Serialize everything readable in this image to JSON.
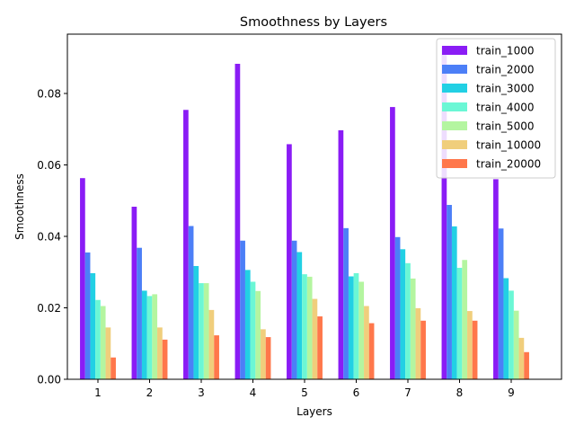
{
  "chart_data": {
    "type": "bar",
    "title": "Smoothness by Layers",
    "xlabel": "Layers",
    "ylabel": "Smoothness",
    "categories": [
      "1",
      "2",
      "3",
      "4",
      "5",
      "6",
      "7",
      "8",
      "9"
    ],
    "ylim": [
      0,
      0.0966
    ],
    "yticks": [
      "0.00",
      "0.02",
      "0.04",
      "0.06",
      "0.08"
    ],
    "ytick_values": [
      0,
      0.02,
      0.04,
      0.06,
      0.08
    ],
    "grid": false,
    "legend_position": "top-right",
    "series": [
      {
        "name": "train_1000",
        "color": "#8a1cf5",
        "values": [
          0.0563,
          0.0483,
          0.0754,
          0.0883,
          0.0658,
          0.0697,
          0.0762,
          0.0932,
          0.056
        ]
      },
      {
        "name": "train_2000",
        "color": "#4c7ff7",
        "values": [
          0.0355,
          0.0368,
          0.0429,
          0.0388,
          0.0388,
          0.0423,
          0.0398,
          0.0488,
          0.0422
        ]
      },
      {
        "name": "train_3000",
        "color": "#22d0e4",
        "values": [
          0.0297,
          0.0248,
          0.0317,
          0.0306,
          0.0356,
          0.0288,
          0.0364,
          0.0428,
          0.0283
        ]
      },
      {
        "name": "train_4000",
        "color": "#6bf7d5",
        "values": [
          0.0222,
          0.0233,
          0.0269,
          0.0273,
          0.0294,
          0.0297,
          0.0325,
          0.0312,
          0.0248
        ]
      },
      {
        "name": "train_5000",
        "color": "#b4f5a0",
        "values": [
          0.0205,
          0.0238,
          0.0269,
          0.0247,
          0.0287,
          0.0273,
          0.0282,
          0.0334,
          0.0192
        ]
      },
      {
        "name": "train_10000",
        "color": "#f0ce7c",
        "values": [
          0.0145,
          0.0145,
          0.0194,
          0.014,
          0.0225,
          0.0205,
          0.0199,
          0.0191,
          0.0116
        ]
      },
      {
        "name": "train_20000",
        "color": "#ff774b",
        "values": [
          0.0061,
          0.0111,
          0.0123,
          0.0118,
          0.0176,
          0.0157,
          0.0164,
          0.0164,
          0.0076
        ]
      }
    ]
  }
}
